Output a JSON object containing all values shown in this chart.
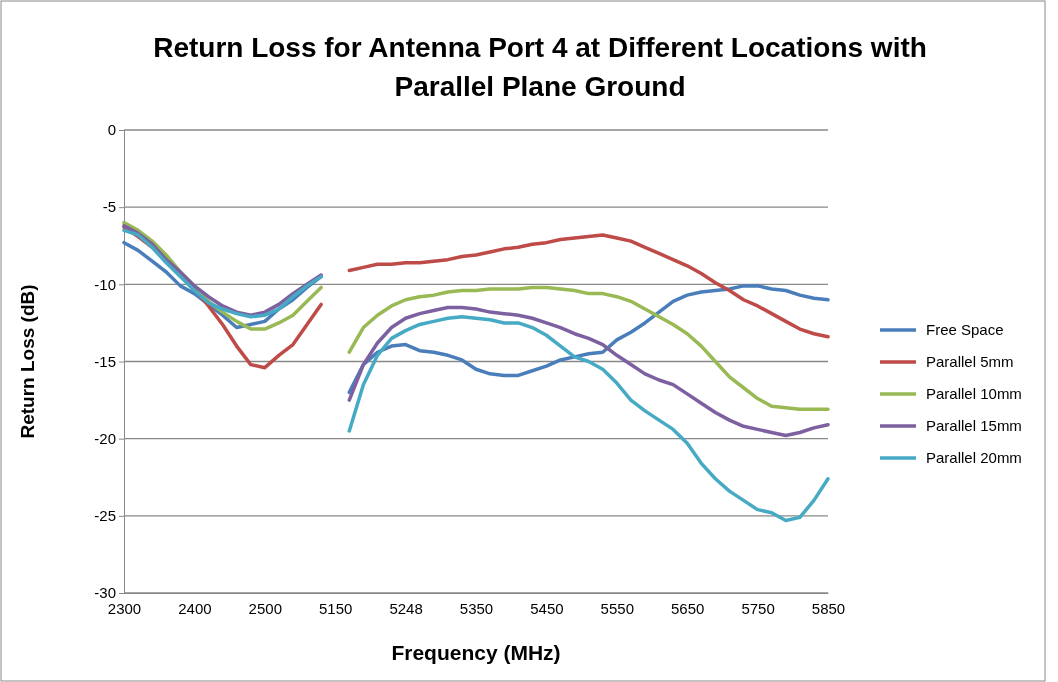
{
  "chart_data": {
    "type": "line",
    "title": "Return Loss for Antenna Port 4 at Different Locations with Parallel Plane Ground",
    "xlabel": "Frequency  (MHz)",
    "ylabel": "Return Loss (dB)",
    "categories": [
      "2300",
      null,
      null,
      null,
      null,
      "2400",
      null,
      null,
      null,
      null,
      "2500",
      null,
      null,
      null,
      null,
      "5150",
      null,
      null,
      null,
      null,
      "5248",
      null,
      null,
      null,
      null,
      "5350",
      null,
      null,
      null,
      null,
      "5450",
      null,
      null,
      null,
      null,
      "5550",
      null,
      null,
      null,
      null,
      "5650",
      null,
      null,
      null,
      null,
      "5750",
      null,
      null,
      null,
      null,
      "5850"
    ],
    "ylim": [
      -30,
      0
    ],
    "yticks": [
      -30,
      -25,
      -20,
      -15,
      -10,
      -5,
      0
    ],
    "grid": "y",
    "legend": "right",
    "marker": "none",
    "line_style": "solid",
    "series": [
      {
        "name": "Free Space",
        "color": "#4a7ebb",
        "values": [
          -7.3,
          -7.8,
          -8.5,
          -9.2,
          -10.1,
          -10.6,
          -11.3,
          -12.0,
          -12.8,
          -12.6,
          -12.4,
          -11.6,
          -11.0,
          -10.2,
          -9.5,
          null,
          -17.0,
          -15.2,
          -14.4,
          -14.0,
          -13.9,
          -14.3,
          -14.4,
          -14.6,
          -14.9,
          -15.5,
          -15.8,
          -15.9,
          -15.9,
          -15.6,
          -15.3,
          -14.9,
          -14.7,
          -14.5,
          -14.4,
          -13.6,
          -13.1,
          -12.5,
          -11.8,
          -11.1,
          -10.7,
          -10.5,
          -10.4,
          -10.3,
          -10.1,
          -10.1,
          -10.3,
          -10.4,
          -10.7,
          -10.9,
          -11.0
        ]
      },
      {
        "name": "Parallel 5mm",
        "color": "#be4b48",
        "values": [
          -6.3,
          -6.9,
          -7.6,
          -8.5,
          -9.4,
          -10.3,
          -11.4,
          -12.6,
          -14.0,
          -15.2,
          -15.4,
          -14.6,
          -13.9,
          -12.6,
          -11.3,
          null,
          -9.1,
          -8.9,
          -8.7,
          -8.7,
          -8.6,
          -8.6,
          -8.5,
          -8.4,
          -8.2,
          -8.1,
          -7.9,
          -7.7,
          -7.6,
          -7.4,
          -7.3,
          -7.1,
          -7.0,
          -6.9,
          -6.8,
          -7.0,
          -7.2,
          -7.6,
          -8.0,
          -8.4,
          -8.8,
          -9.3,
          -9.9,
          -10.4,
          -11.0,
          -11.4,
          -11.9,
          -12.4,
          -12.9,
          -13.2,
          -13.4
        ]
      },
      {
        "name": "Parallel 10mm",
        "color": "#98b954",
        "values": [
          -6.0,
          -6.5,
          -7.2,
          -8.1,
          -9.2,
          -10.1,
          -11.1,
          -11.8,
          -12.4,
          -12.9,
          -12.9,
          -12.5,
          -12.0,
          -11.1,
          -10.2,
          null,
          -14.4,
          -12.8,
          -12.0,
          -11.4,
          -11.0,
          -10.8,
          -10.7,
          -10.5,
          -10.4,
          -10.4,
          -10.3,
          -10.3,
          -10.3,
          -10.2,
          -10.2,
          -10.3,
          -10.4,
          -10.6,
          -10.6,
          -10.8,
          -11.1,
          -11.6,
          -12.1,
          -12.6,
          -13.2,
          -14.0,
          -15.0,
          -16.0,
          -16.7,
          -17.4,
          -17.9,
          -18.0,
          -18.1,
          -18.1,
          -18.1
        ]
      },
      {
        "name": "Parallel 15mm",
        "color": "#7d60a0",
        "values": [
          -6.2,
          -6.7,
          -7.4,
          -8.4,
          -9.2,
          -10.1,
          -10.8,
          -11.4,
          -11.8,
          -12.0,
          -11.8,
          -11.3,
          -10.6,
          -10.0,
          -9.4,
          null,
          -17.5,
          -15.2,
          -13.8,
          -12.8,
          -12.2,
          -11.9,
          -11.7,
          -11.5,
          -11.5,
          -11.6,
          -11.8,
          -11.9,
          -12.0,
          -12.2,
          -12.5,
          -12.8,
          -13.2,
          -13.5,
          -13.9,
          -14.6,
          -15.2,
          -15.8,
          -16.2,
          -16.5,
          -17.1,
          -17.7,
          -18.3,
          -18.8,
          -19.2,
          -19.4,
          -19.6,
          -19.8,
          -19.6,
          -19.3,
          -19.1
        ]
      },
      {
        "name": "Parallel 20mm",
        "color": "#46aac5",
        "values": [
          -6.5,
          -6.8,
          -7.6,
          -8.6,
          -9.5,
          -10.4,
          -11.2,
          -11.6,
          -11.9,
          -12.1,
          -12.0,
          -11.6,
          -10.8,
          -10.1,
          -9.5,
          null,
          -19.5,
          -16.5,
          -14.6,
          -13.5,
          -13.0,
          -12.6,
          -12.4,
          -12.2,
          -12.1,
          -12.2,
          -12.3,
          -12.5,
          -12.5,
          -12.8,
          -13.3,
          -14.0,
          -14.7,
          -15.0,
          -15.5,
          -16.4,
          -17.5,
          -18.2,
          -18.8,
          -19.4,
          -20.3,
          -21.6,
          -22.6,
          -23.4,
          -24.0,
          -24.6,
          -24.8,
          -25.3,
          -25.1,
          -24.0,
          -22.6
        ]
      }
    ]
  }
}
